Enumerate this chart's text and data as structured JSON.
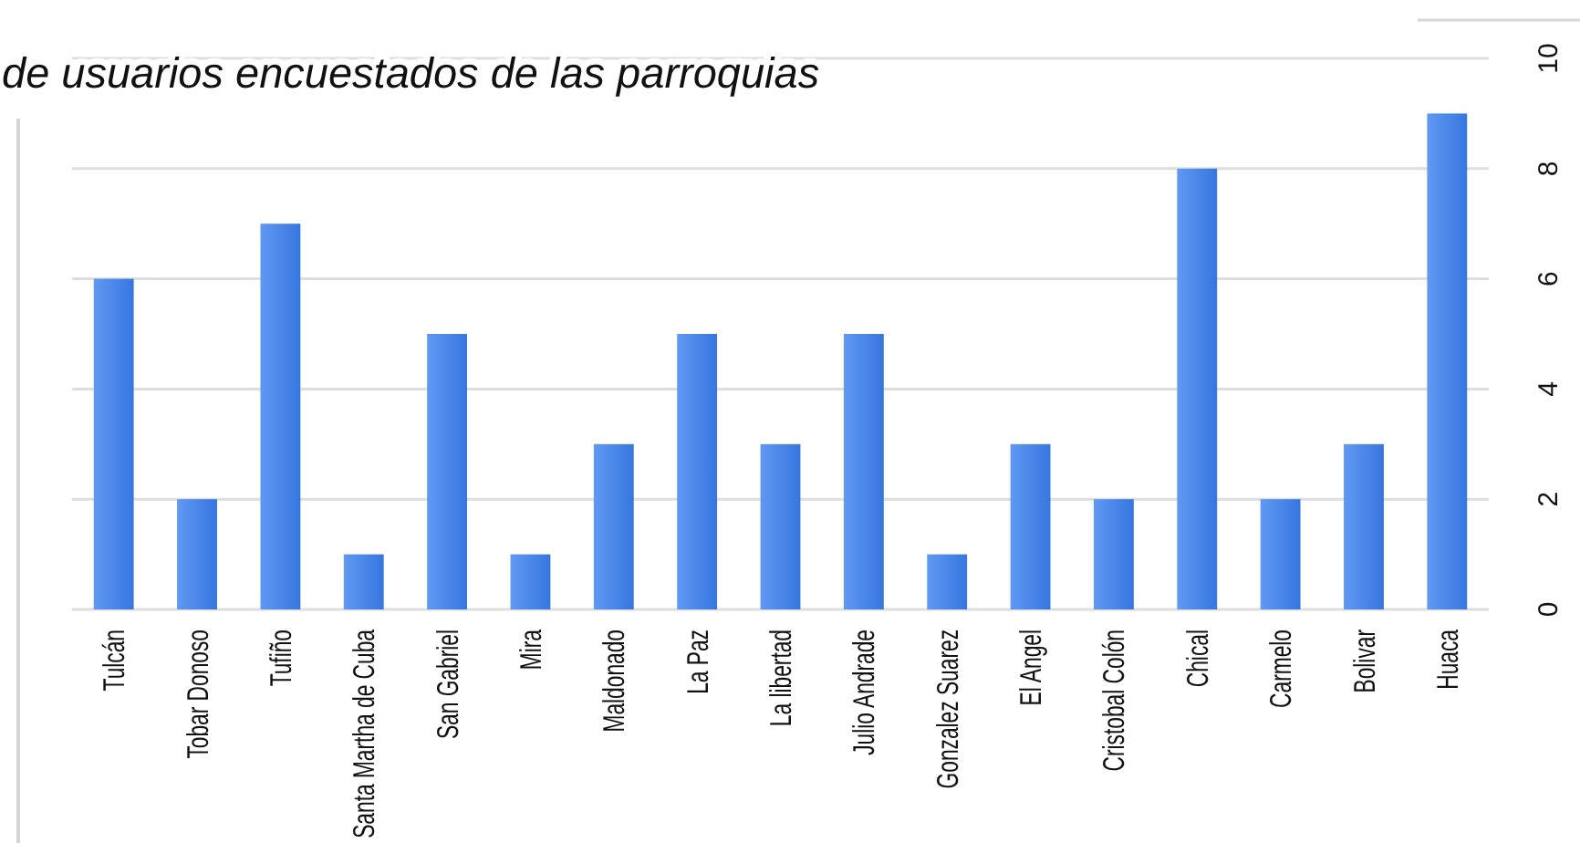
{
  "chart_data": {
    "type": "bar",
    "title": "de usuarios encuestados de las parroquias",
    "categories": [
      "Tulcán",
      "Tobar Donoso",
      "Tufiño",
      "Santa Martha de Cuba",
      "San Gabriel",
      "Mira",
      "Maldonado",
      "La Paz",
      "La libertad",
      "Julio Andrade",
      "Gonzalez Suarez",
      "El Angel",
      "Cristobal Colón",
      "Chical",
      "Carmelo",
      "Bolivar",
      "Huaca"
    ],
    "values": [
      6,
      2,
      7,
      1,
      5,
      1,
      3,
      5,
      3,
      5,
      1,
      3,
      2,
      8,
      2,
      3,
      9
    ],
    "color": "#3a7ff0",
    "ylim": [
      0,
      10
    ],
    "yticks": [
      0,
      2,
      4,
      6,
      8,
      10
    ],
    "grid": "y"
  }
}
